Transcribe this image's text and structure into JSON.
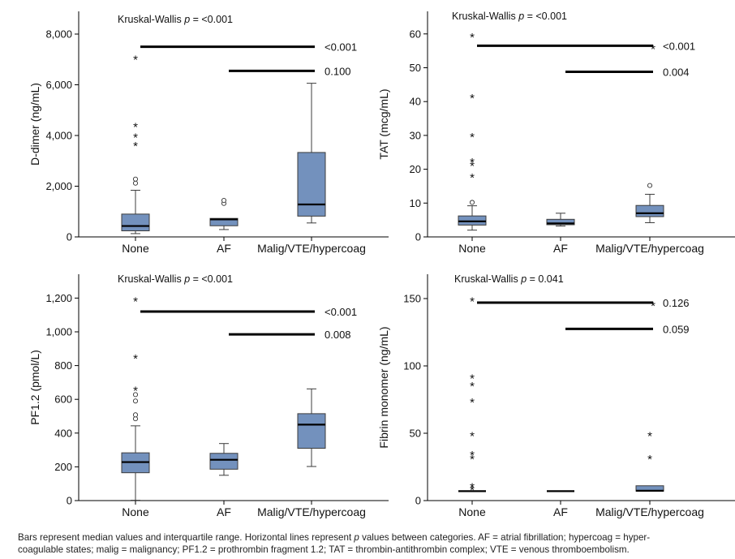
{
  "figure": {
    "categories": [
      "None",
      "AF",
      "Malig/VTE/hypercoag"
    ],
    "box_fill": "#7391bd",
    "box_stroke": "#3c3c3c",
    "line_color": "#000000"
  },
  "chart_data": [
    {
      "type": "box",
      "ylabel": "D-dimer (ng/mL)",
      "ylim": [
        0,
        8000
      ],
      "yticks": [
        0,
        2000,
        4000,
        6000,
        8000
      ],
      "ytick_labels": [
        "0",
        "2,000",
        "4,000",
        "6,000",
        "8,000"
      ],
      "test_label": "Kruskal-Wallis",
      "test_p": "= <0.001",
      "boxes": [
        {
          "category": "None",
          "min": 130,
          "q1": 240,
          "median": 430,
          "q3": 900,
          "max": 1840,
          "outliers_circle": [
            2120,
            2280
          ],
          "outliers_star": [
            3650,
            3990,
            4400,
            7050
          ]
        },
        {
          "category": "AF",
          "min": 290,
          "q1": 440,
          "median": 690,
          "q3": 730,
          "max": 730,
          "outliers_circle": [
            1320,
            1440
          ],
          "outliers_star": []
        },
        {
          "category": "Malig/VTE/hypercoag",
          "min": 550,
          "q1": 820,
          "median": 1280,
          "q3": 3330,
          "max": 6060,
          "outliers_circle": [],
          "outliers_star": []
        }
      ],
      "comparisons": [
        {
          "from": "None",
          "to": "Malig/VTE/hypercoag",
          "y": 7500,
          "label": "<0.001"
        },
        {
          "from": "AF",
          "to": "Malig/VTE/hypercoag",
          "y": 6550,
          "label": "0.100"
        }
      ]
    },
    {
      "type": "box",
      "ylabel": "TAT (mcg/mL)",
      "ylim": [
        0,
        65
      ],
      "yticks": [
        0,
        10,
        20,
        30,
        40,
        50,
        60
      ],
      "ytick_labels": [
        "0",
        "10",
        "20",
        "30",
        "40",
        "50",
        "60"
      ],
      "test_label": "Kruskal-Wallis",
      "test_p": "= <0.001",
      "boxes": [
        {
          "category": "None",
          "min": 2.0,
          "q1": 3.5,
          "median": 4.6,
          "q3": 6.2,
          "max": 9.2,
          "outliers_circle": [
            10.2
          ],
          "outliers_star": [
            18,
            21.5,
            22.5,
            30,
            41.5,
            59.5
          ]
        },
        {
          "category": "AF",
          "min": 3.2,
          "q1": 3.6,
          "median": 4.0,
          "q3": 5.2,
          "max": 7.0,
          "outliers_circle": [],
          "outliers_star": []
        },
        {
          "category": "Malig/VTE/hypercoag",
          "min": 4.2,
          "q1": 6.0,
          "median": 7.0,
          "q3": 9.3,
          "max": 12.6,
          "outliers_circle": [
            15.2
          ],
          "outliers_star": []
        }
      ],
      "comparisons": [
        {
          "from": "None",
          "to": "Malig/VTE/hypercoag",
          "y": 56.5,
          "label": "<0.001",
          "end_star": true
        },
        {
          "from": "AF",
          "to": "Malig/VTE/hypercoag",
          "y": 48.8,
          "label": "0.004"
        }
      ]
    },
    {
      "type": "box",
      "ylabel": "PF1.2 (pmol/L)",
      "ylim": [
        0,
        1300
      ],
      "yticks": [
        0,
        200,
        400,
        600,
        800,
        1000,
        1200
      ],
      "ytick_labels": [
        "0",
        "200",
        "400",
        "600",
        "800",
        "1,000",
        "1,200"
      ],
      "test_label": "Kruskal-Wallis",
      "test_p": "= <0.001",
      "boxes": [
        {
          "category": "None",
          "min": 2,
          "q1": 165,
          "median": 228,
          "q3": 283,
          "max": 443,
          "outliers_circle": [
            485,
            508,
            590,
            628
          ],
          "outliers_star": [
            660,
            850,
            1190
          ]
        },
        {
          "category": "AF",
          "min": 150,
          "q1": 186,
          "median": 242,
          "q3": 280,
          "max": 338,
          "outliers_circle": [],
          "outliers_star": []
        },
        {
          "category": "Malig/VTE/hypercoag",
          "min": 202,
          "q1": 310,
          "median": 450,
          "q3": 515,
          "max": 662,
          "outliers_circle": [],
          "outliers_star": []
        }
      ],
      "comparisons": [
        {
          "from": "None",
          "to": "Malig/VTE/hypercoag",
          "y": 1120,
          "label": "<0.001"
        },
        {
          "from": "AF",
          "to": "Malig/VTE/hypercoag",
          "y": 985,
          "label": "0.008"
        }
      ]
    },
    {
      "type": "box",
      "ylabel": "Fibrin monomer (ng/mL)",
      "ylim": [
        0,
        160
      ],
      "yticks": [
        0,
        50,
        100,
        150
      ],
      "ytick_labels": [
        "0",
        "50",
        "100",
        "150"
      ],
      "test_label": "Kruskal-Wallis",
      "test_p": "= 0.041",
      "boxes": [
        {
          "category": "None",
          "min": 7,
          "q1": 7,
          "median": 7,
          "q3": 7,
          "max": 7,
          "outliers_circle": [],
          "outliers_star": [
            9,
            11,
            32,
            35,
            49,
            74,
            86,
            92,
            149
          ]
        },
        {
          "category": "AF",
          "min": 7,
          "q1": 7,
          "median": 7,
          "q3": 7,
          "max": 7,
          "outliers_circle": [],
          "outliers_star": []
        },
        {
          "category": "Malig/VTE/hypercoag",
          "min": 7,
          "q1": 7,
          "median": 7.3,
          "q3": 11,
          "max": 11,
          "outliers_circle": [],
          "outliers_star": [
            32,
            49
          ]
        }
      ],
      "comparisons": [
        {
          "from": "None",
          "to": "Malig/VTE/hypercoag",
          "y": 147,
          "label": "0.126",
          "end_star": true
        },
        {
          "from": "AF",
          "to": "Malig/VTE/hypercoag",
          "y": 127.5,
          "label": "0.059"
        }
      ]
    }
  ],
  "caption": {
    "line1_a": "Bars represent median values and interquartile range. Horizontal lines represent ",
    "line1_p": "p",
    "line1_b": " values between categories. AF = atrial fibrillation; hypercoag = hyper-",
    "line2": "coagulable states; malig = malignancy; PF1.2 = prothrombin fragment 1.2; TAT = thrombin-antithrombin complex; VTE = venous thromboembolism."
  }
}
